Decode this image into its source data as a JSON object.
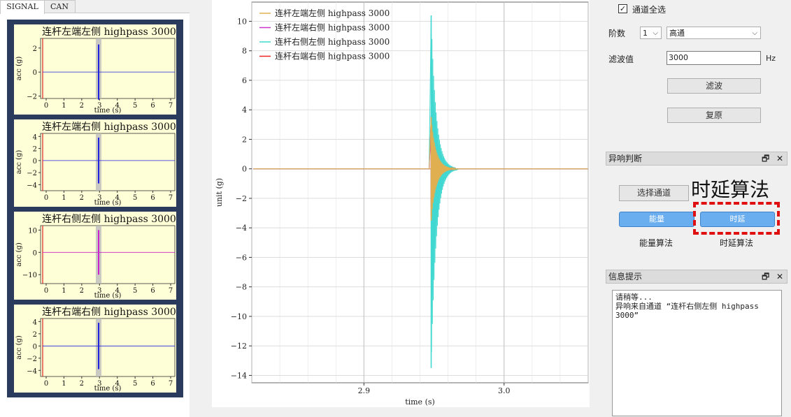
{
  "tabs": [
    {
      "label": "SIGNAL",
      "active": true
    },
    {
      "label": "CAN",
      "active": false
    }
  ],
  "mini_charts": [
    {
      "title": "连杆左端左侧 highpass 3000",
      "ylabel": "acc (g)",
      "xlabel": "time (s)",
      "yticks": [
        "2",
        "0",
        "−2"
      ],
      "xticks": [
        "0",
        "1",
        "2",
        "3",
        "4",
        "5",
        "6",
        "7"
      ],
      "color": "#2222dd",
      "spike": 2.3,
      "ylim": [
        -2.2,
        2.8
      ]
    },
    {
      "title": "连杆左端右侧 highpass 3000",
      "ylabel": "acc (g)",
      "xlabel": "time (s)",
      "yticks": [
        "4",
        "2",
        "0",
        "−2",
        "−4"
      ],
      "xticks": [
        "0",
        "1",
        "2",
        "3",
        "4",
        "5",
        "6",
        "7"
      ],
      "color": "#2222dd",
      "spike": 3.8,
      "ylim": [
        -5,
        4.5
      ]
    },
    {
      "title": "连杆右侧左侧 highpass 3000",
      "ylabel": "acc (g)",
      "xlabel": "time (s)",
      "yticks": [
        "10",
        "0",
        "−10"
      ],
      "xticks": [
        "0",
        "1",
        "2",
        "3",
        "4",
        "5",
        "6",
        "7"
      ],
      "color": "#cc22cc",
      "spike": 10,
      "ylim": [
        -14,
        12
      ]
    },
    {
      "title": "连杆右端右侧 highpass 3000",
      "ylabel": "acc (g)",
      "xlabel": "time (s)",
      "yticks": [
        "4",
        "2",
        "0",
        "−2",
        "−4"
      ],
      "xticks": [
        "0",
        "1",
        "2",
        "3",
        "4",
        "5",
        "6",
        "7"
      ],
      "color": "#2222dd",
      "spike": 3.8,
      "ylim": [
        -5,
        4.5
      ]
    }
  ],
  "chart_data": {
    "type": "line",
    "xlabel": "time (s)",
    "ylabel": "unit (g)",
    "xlim": [
      2.82,
      3.06
    ],
    "ylim": [
      -14.5,
      11.3
    ],
    "xticks": [
      2.9,
      3.0
    ],
    "yticks": [
      10,
      8,
      6,
      4,
      2,
      0,
      -2,
      -4,
      -6,
      -8,
      -10,
      -12,
      -14
    ],
    "legend_position": "top-left",
    "series": [
      {
        "name": "连杆左端左侧 highpass 3000",
        "color": "#e0b050",
        "peak": 3.5,
        "trough": -3.5
      },
      {
        "name": "连杆左端右侧 highpass 3000",
        "color": "#cc33cc",
        "peak": 2.6,
        "trough": -2.6
      },
      {
        "name": "连杆右侧左侧 highpass 3000",
        "color": "#40d8d0",
        "peak": 10.4,
        "trough": -13.5
      },
      {
        "name": "连杆右端右侧 highpass 3000",
        "color": "#ee2222",
        "peak": 3.6,
        "trough": -3.2
      }
    ],
    "event_time": 2.948
  },
  "right_panel": {
    "select_all_label": "通道全选",
    "order_label": "阶数",
    "order_value": "1",
    "filter_type": "高通",
    "filter_value_label": "滤波值",
    "filter_value": "3000",
    "unit": "Hz",
    "filter_button": "滤波",
    "restore_button": "复原"
  },
  "abnormal_dock": {
    "title": "异响判断",
    "select_channel_button": "选择通道",
    "energy_button": "能量",
    "delay_button": "时延",
    "energy_label": "能量算法",
    "delay_label": "时延算法"
  },
  "annotation": "时延算法",
  "info_dock": {
    "title": "信息提示",
    "lines": [
      "请稍等...",
      "异响来自通道 “连杆右侧左侧 highpass",
      "3000”"
    ]
  }
}
